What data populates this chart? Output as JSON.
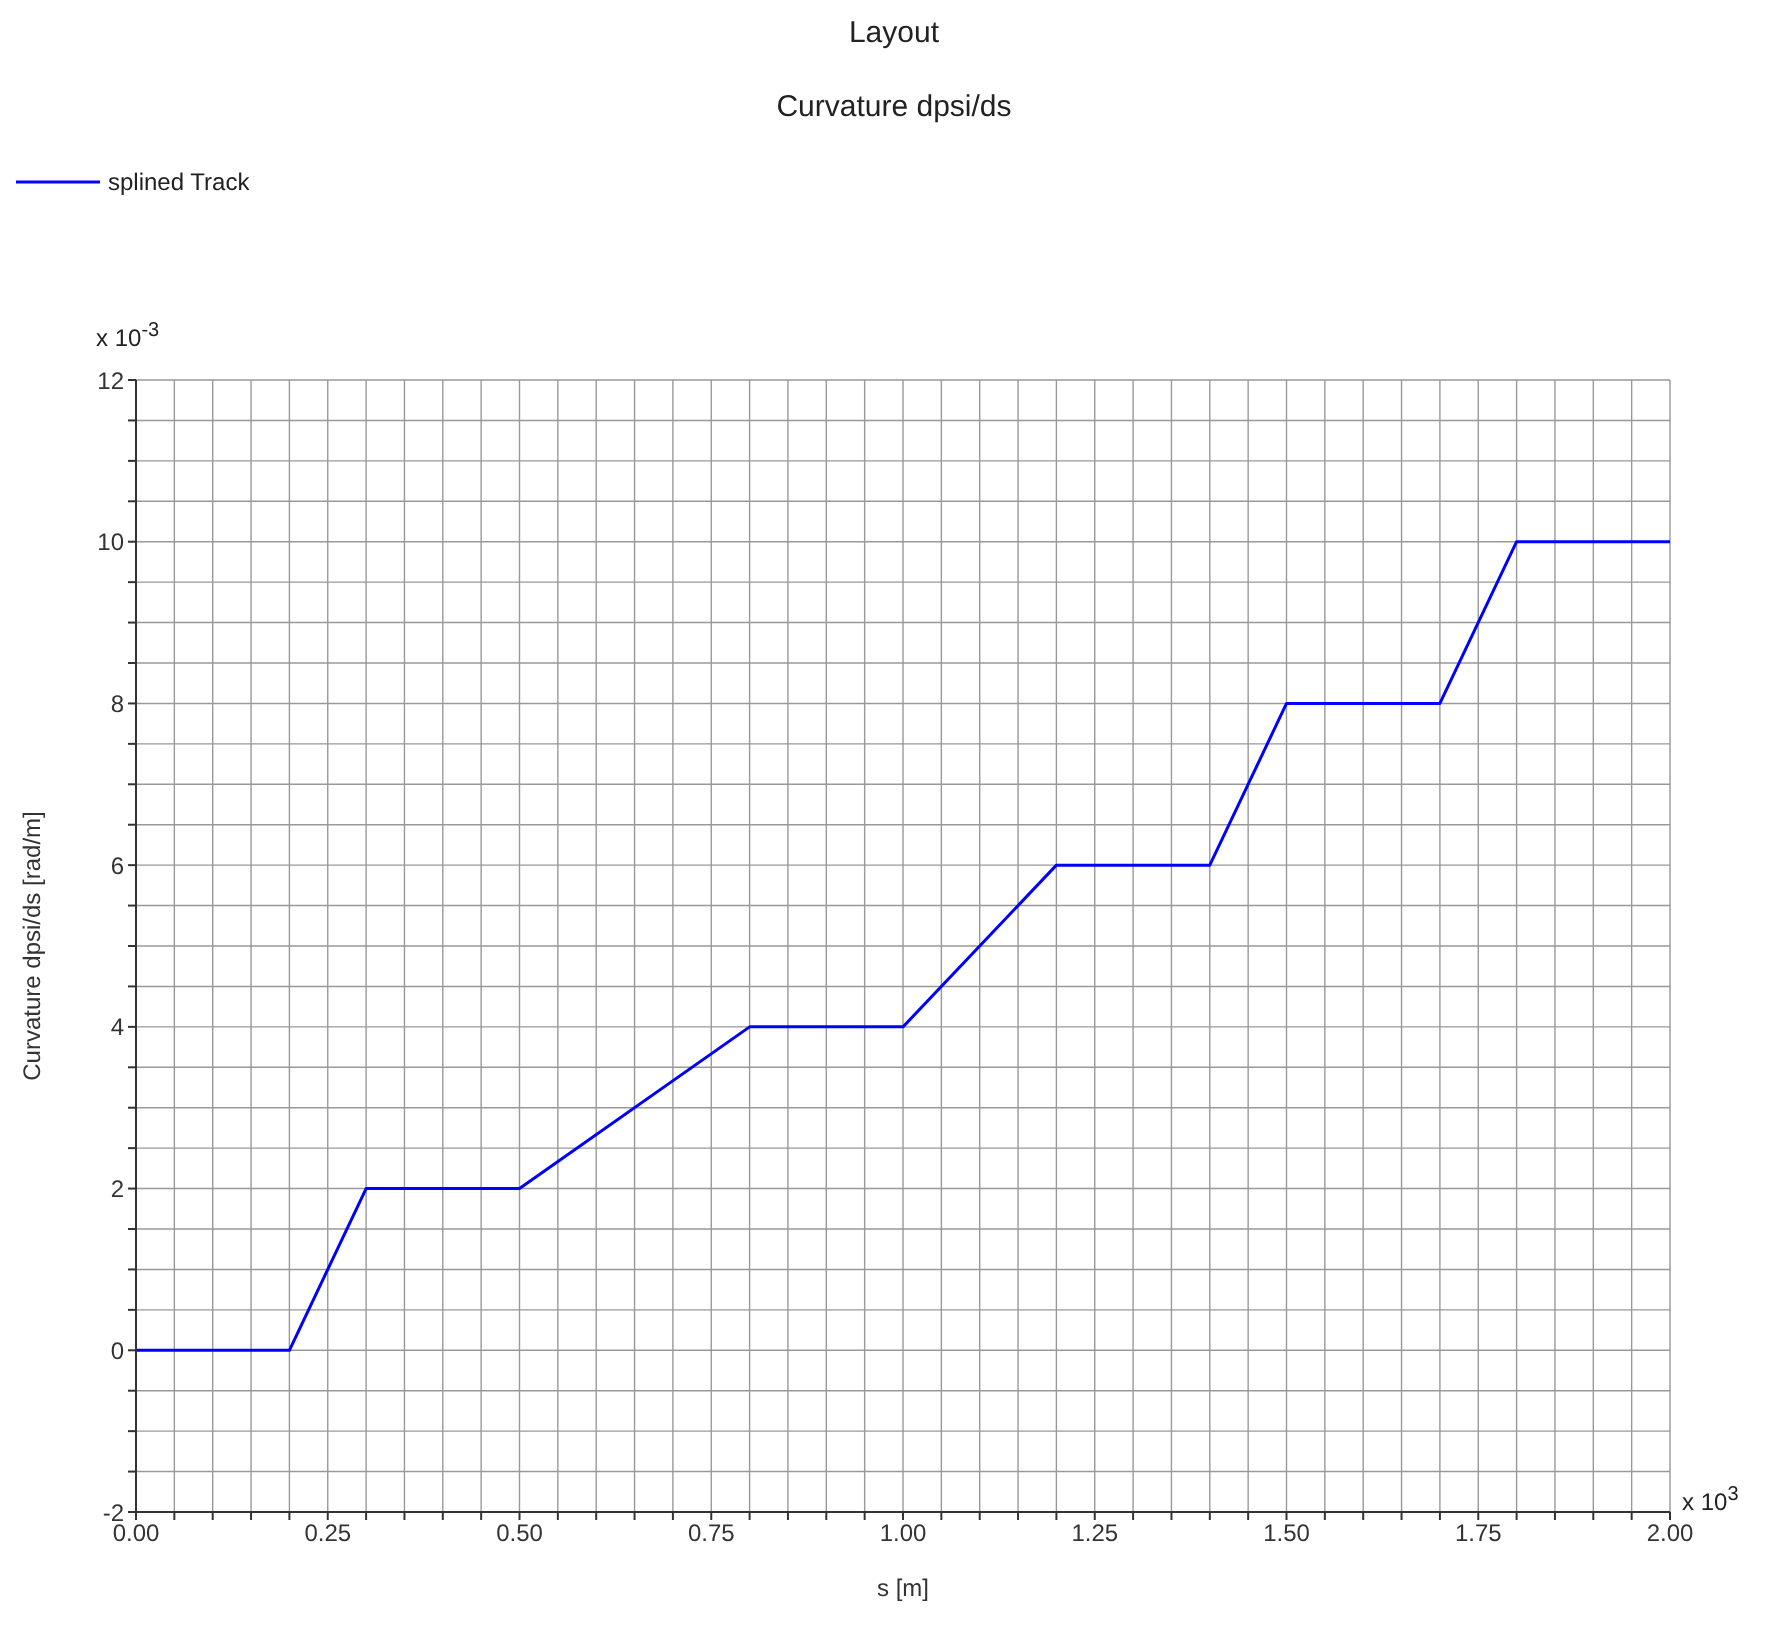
{
  "chart_data": {
    "type": "line",
    "title": "Layout",
    "subtitle": "Curvature dpsi/ds",
    "xlabel": "s [m]",
    "ylabel": "Curvature dpsi/ds [rad/m]",
    "annotations": [
      "x 10$^{-3}$",
      "x 10$^{3}$"
    ],
    "x": [
      0,
      0.2,
      0.3,
      0.5,
      0.8,
      1.0,
      1.2,
      1.4,
      1.5,
      1.7,
      1.8,
      2.0
    ],
    "series": [
      {
        "name": "splined Track",
        "color": "#0000ff",
        "values": [
          0,
          0,
          2,
          2,
          4,
          4,
          6,
          6,
          8,
          8,
          10,
          10
        ]
      }
    ],
    "xlim": [
      0,
      2
    ],
    "ylim": [
      -2,
      12
    ],
    "xticks": [
      {
        "value": 0,
        "label": "0.00"
      },
      {
        "value": 0.05,
        "label": null
      },
      {
        "value": 0.1,
        "label": null
      },
      {
        "value": 0.15,
        "label": null
      },
      {
        "value": 0.2,
        "label": null
      },
      {
        "value": 0.25,
        "label": "0.25"
      },
      {
        "value": 0.3,
        "label": null
      },
      {
        "value": 0.35,
        "label": null
      },
      {
        "value": 0.4,
        "label": null
      },
      {
        "value": 0.45,
        "label": null
      },
      {
        "value": 0.5,
        "label": "0.50"
      },
      {
        "value": 0.55,
        "label": null
      },
      {
        "value": 0.6,
        "label": null
      },
      {
        "value": 0.65,
        "label": null
      },
      {
        "value": 0.7,
        "label": null
      },
      {
        "value": 0.75,
        "label": "0.75"
      },
      {
        "value": 0.8,
        "label": null
      },
      {
        "value": 0.85,
        "label": null
      },
      {
        "value": 0.9,
        "label": null
      },
      {
        "value": 0.95,
        "label": null
      },
      {
        "value": 1,
        "label": "1.00"
      },
      {
        "value": 1.05,
        "label": null
      },
      {
        "value": 1.1,
        "label": null
      },
      {
        "value": 1.15,
        "label": null
      },
      {
        "value": 1.2,
        "label": null
      },
      {
        "value": 1.25,
        "label": "1.25"
      },
      {
        "value": 1.3,
        "label": null
      },
      {
        "value": 1.35,
        "label": null
      },
      {
        "value": 1.4,
        "label": null
      },
      {
        "value": 1.45,
        "label": null
      },
      {
        "value": 1.5,
        "label": "1.50"
      },
      {
        "value": 1.55,
        "label": null
      },
      {
        "value": 1.6,
        "label": null
      },
      {
        "value": 1.65,
        "label": null
      },
      {
        "value": 1.7,
        "label": null
      },
      {
        "value": 1.75,
        "label": "1.75"
      },
      {
        "value": 1.8,
        "label": null
      },
      {
        "value": 1.85,
        "label": null
      },
      {
        "value": 1.9,
        "label": null
      },
      {
        "value": 1.95,
        "label": null
      },
      {
        "value": 2,
        "label": "2.00"
      }
    ],
    "yticks": [
      -2,
      {
        "value": -1.5,
        "label": null
      },
      {
        "value": -1,
        "label": null
      },
      {
        "value": -0.5,
        "label": null
      },
      0,
      {
        "value": 0.5,
        "label": null
      },
      {
        "value": 1,
        "label": null
      },
      {
        "value": 1.5,
        "label": null
      },
      2,
      {
        "value": 2.5,
        "label": null
      },
      {
        "value": 3,
        "label": null
      },
      {
        "value": 3.5,
        "label": null
      },
      4,
      {
        "value": 4.5,
        "label": null
      },
      {
        "value": 5,
        "label": null
      },
      {
        "value": 5.5,
        "label": null
      },
      6,
      {
        "value": 6.5,
        "label": null
      },
      {
        "value": 7,
        "label": null
      },
      {
        "value": 7.5,
        "label": null
      },
      8,
      {
        "value": 8.5,
        "label": null
      },
      {
        "value": 9,
        "label": null
      },
      {
        "value": 9.5,
        "label": null
      },
      10,
      {
        "value": 10.5,
        "label": null
      },
      {
        "value": 11,
        "label": null
      },
      {
        "value": 11.5,
        "label": null
      },
      12
    ],
    "grid": true,
    "legend": "top left",
    "marker": "none",
    "line_style": "solid"
  }
}
